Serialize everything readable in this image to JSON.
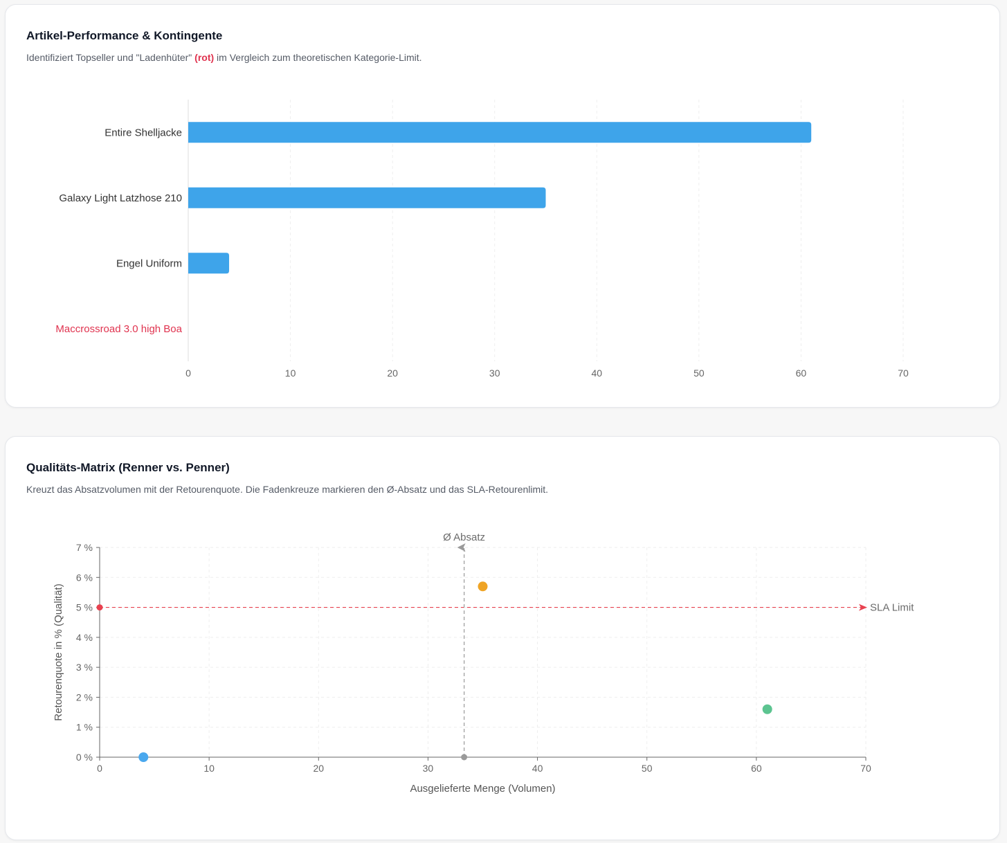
{
  "cards": [
    {
      "title": "Artikel-Performance & Kontingente",
      "subtitle_before": "Identifiziert Topseller und \"Ladenhüter\" ",
      "subtitle_highlight": "(rot)",
      "subtitle_after": " im Vergleich zum theoretischen Kategorie-Limit."
    },
    {
      "title": "Qualitäts-Matrix (Renner vs. Penner)",
      "subtitle": "Kreuzt das Absatzvolumen mit der Retourenquote. Die Fadenkreuze markieren den Ø-Absatz und das SLA-Retourenlimit."
    }
  ],
  "colors": {
    "bar": "#3ea4ea",
    "highlight": "#e0334f",
    "reference_line": "#e8414f",
    "average_line": "#9a9a9a",
    "grid": "#eeeeee",
    "axis": "#666666"
  },
  "chart_data": [
    {
      "type": "bar",
      "orientation": "horizontal",
      "categories": [
        "Entire Shelljacke",
        "Galaxy Light Latzhose 210",
        "Engel Uniform",
        "Maccrossroad 3.0 high Boa"
      ],
      "values": [
        61,
        35,
        4,
        0
      ],
      "highlight_categories": [
        "Maccrossroad 3.0 high Boa"
      ],
      "xlim": [
        0,
        70
      ],
      "xticks": [
        0,
        10,
        20,
        30,
        40,
        50,
        60,
        70
      ],
      "grid": true
    },
    {
      "type": "scatter",
      "xlabel": "Ausgelieferte Menge (Volumen)",
      "ylabel": "Retourenquote in % (Qualität)",
      "xlim": [
        0,
        70
      ],
      "ylim": [
        0,
        7
      ],
      "xticks": [
        0,
        10,
        20,
        30,
        40,
        50,
        60,
        70
      ],
      "yticks": [
        0,
        1,
        2,
        3,
        4,
        5,
        6,
        7
      ],
      "ytick_suffix": " %",
      "points": [
        {
          "x": 4,
          "y": 0,
          "color": "#4aa8ee"
        },
        {
          "x": 35,
          "y": 5.7,
          "color": "#efa425"
        },
        {
          "x": 61,
          "y": 1.6,
          "color": "#5cc490"
        }
      ],
      "reference_lines": [
        {
          "axis": "y",
          "value": 5,
          "label": "SLA Limit",
          "color": "#e8414f"
        },
        {
          "axis": "x",
          "value": 33.3,
          "label": "Ø Absatz",
          "color": "#9a9a9a"
        }
      ],
      "grid": true
    }
  ]
}
